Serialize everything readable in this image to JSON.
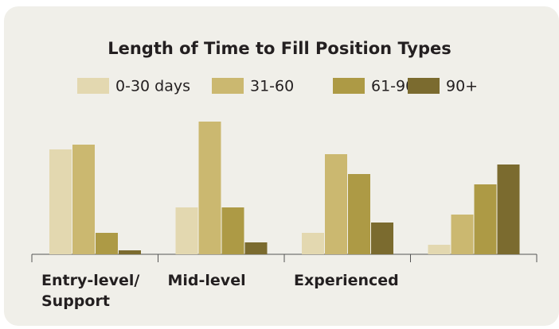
{
  "chart_data": {
    "type": "bar",
    "title": "Length of Time to Fill Position Types",
    "categories": [
      "Entry-level/ Support",
      "Mid-level",
      "Experienced",
      null
    ],
    "series": [
      {
        "name": "0-30 days",
        "color": "#e3d8b0",
        "values": [
          132,
          59,
          27,
          12
        ]
      },
      {
        "name": "31-60",
        "color": "#cbb870",
        "values": [
          138,
          167,
          126,
          50
        ]
      },
      {
        "name": "61-90",
        "color": "#ad9a45",
        "values": [
          27,
          59,
          101,
          88
        ]
      },
      {
        "name": "90+",
        "color": "#7b6b2f",
        "values": [
          5,
          15,
          40,
          113
        ]
      }
    ],
    "ylim": [
      0,
      180
    ]
  }
}
